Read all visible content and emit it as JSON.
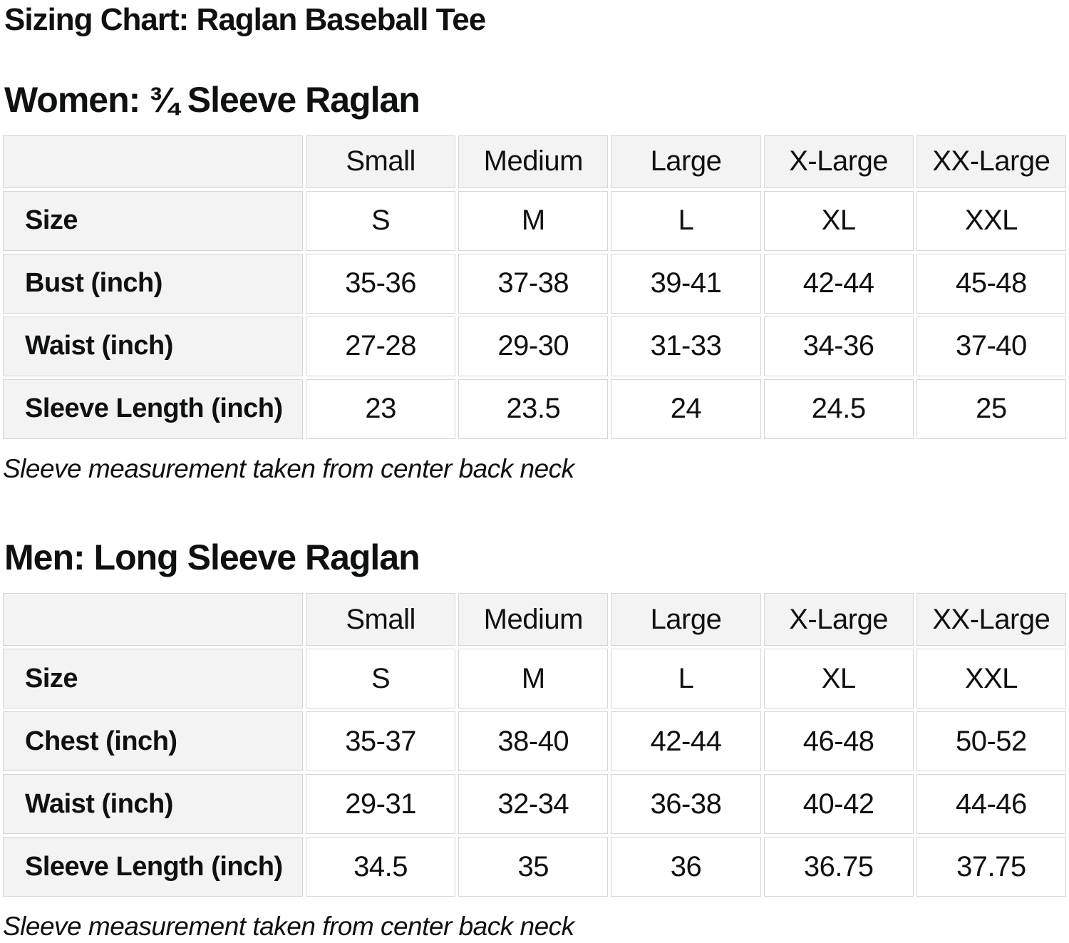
{
  "title": "Sizing Chart: Raglan Baseball Tee",
  "colors": {
    "page_bg": "#ffffff",
    "text": "#0f1111",
    "header_cell_bg": "#f3f3f3",
    "cell_border": "#d6d6d6"
  },
  "women": {
    "heading": "Women: ¾ Sleeve Raglan",
    "table": {
      "column_headers": [
        "",
        "Small",
        "Medium",
        "Large",
        "X-Large",
        "XX-Large"
      ],
      "rows": [
        {
          "label": "Size",
          "values": [
            "S",
            "M",
            "L",
            "XL",
            "XXL"
          ]
        },
        {
          "label": "Bust (inch)",
          "values": [
            "35-36",
            "37-38",
            "39-41",
            "42-44",
            "45-48"
          ]
        },
        {
          "label": "Waist (inch)",
          "values": [
            "27-28",
            "29-30",
            "31-33",
            "34-36",
            "37-40"
          ]
        },
        {
          "label": "Sleeve Length (inch)",
          "values": [
            "23",
            "23.5",
            "24",
            "24.5",
            "25"
          ]
        }
      ]
    },
    "note": "Sleeve measurement taken from center back neck"
  },
  "men": {
    "heading": "Men: Long Sleeve Raglan",
    "table": {
      "column_headers": [
        "",
        "Small",
        "Medium",
        "Large",
        "X-Large",
        "XX-Large"
      ],
      "rows": [
        {
          "label": "Size",
          "values": [
            "S",
            "M",
            "L",
            "XL",
            "XXL"
          ]
        },
        {
          "label": "Chest (inch)",
          "values": [
            "35-37",
            "38-40",
            "42-44",
            "46-48",
            "50-52"
          ]
        },
        {
          "label": "Waist (inch)",
          "values": [
            "29-31",
            "32-34",
            "36-38",
            "40-42",
            "44-46"
          ]
        },
        {
          "label": "Sleeve Length (inch)",
          "values": [
            "34.5",
            "35",
            "36",
            "36.75",
            "37.75"
          ]
        }
      ]
    },
    "note": "Sleeve measurement taken from center back neck"
  }
}
